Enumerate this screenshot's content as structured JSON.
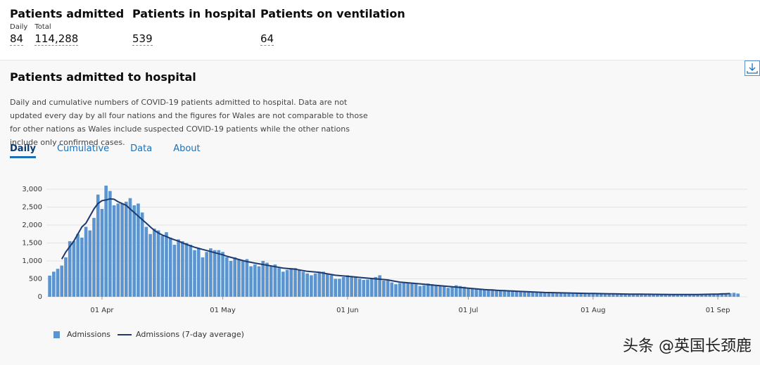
{
  "header": {
    "stats": [
      {
        "title": "Patients admitted",
        "items": [
          {
            "label": "Daily",
            "value": "84"
          },
          {
            "label": "Total",
            "value": "114,288"
          }
        ]
      },
      {
        "title": "Patients in hospital",
        "items": [
          {
            "value": "539"
          }
        ]
      },
      {
        "title": "Patients on ventilation",
        "items": [
          {
            "value": "64"
          }
        ]
      }
    ]
  },
  "card": {
    "description": "Daily and cumulative numbers of COVID-19 patients admitted to hospital. Data are not updated every day by all four nations and the figures for Wales are not comparable to those for other nations as Wales include suspected COVID-19 patients while the other nations include only confirmed cases.",
    "tabs": [
      "Daily",
      "Cumulative",
      "Data",
      "About"
    ]
  },
  "watermark": "头条 @英国长颈鹿",
  "chart_data": {
    "type": "bar",
    "title": "Patients admitted to hospital",
    "categories": [
      null,
      null,
      null,
      null,
      null,
      null,
      null,
      null,
      null,
      null,
      null,
      null,
      null,
      "01 Apr",
      null,
      null,
      null,
      null,
      null,
      null,
      null,
      null,
      null,
      null,
      null,
      null,
      null,
      null,
      null,
      null,
      null,
      null,
      null,
      null,
      null,
      null,
      null,
      null,
      null,
      null,
      null,
      null,
      null,
      "01 May",
      null,
      null,
      null,
      null,
      null,
      null,
      null,
      null,
      null,
      null,
      null,
      null,
      null,
      null,
      null,
      null,
      null,
      null,
      null,
      null,
      null,
      null,
      null,
      null,
      null,
      null,
      null,
      null,
      null,
      null,
      "01 Jun",
      null,
      null,
      null,
      null,
      null,
      null,
      null,
      null,
      null,
      null,
      null,
      null,
      null,
      null,
      null,
      null,
      null,
      null,
      null,
      null,
      null,
      null,
      null,
      null,
      null,
      null,
      null,
      null,
      null,
      "01 Jul",
      null,
      null,
      null,
      null,
      null,
      null,
      null,
      null,
      null,
      null,
      null,
      null,
      null,
      null,
      null,
      null,
      null,
      null,
      null,
      null,
      null,
      null,
      null,
      null,
      null,
      null,
      null,
      null,
      null,
      null,
      "01 Aug",
      null,
      null,
      null,
      null,
      null,
      null,
      null,
      null,
      null,
      null,
      null,
      null,
      null,
      null,
      null,
      null,
      null,
      null,
      null,
      null,
      null,
      null,
      null,
      null,
      null,
      null,
      null,
      null,
      null,
      null,
      "01 Sep",
      null,
      null,
      null,
      null,
      null
    ],
    "series": [
      {
        "name": "Admissions",
        "type": "bar",
        "color": "#5b94cf",
        "values": [
          590,
          700,
          780,
          870,
          1100,
          1550,
          1550,
          1750,
          1650,
          1950,
          1850,
          2200,
          2850,
          2450,
          3100,
          2950,
          2550,
          2600,
          2600,
          2650,
          2750,
          2550,
          2600,
          2350,
          1950,
          1750,
          1900,
          1850,
          1700,
          1800,
          1650,
          1450,
          1600,
          1550,
          1500,
          1450,
          1300,
          1350,
          1100,
          1250,
          1350,
          1300,
          1300,
          1250,
          1100,
          1000,
          1100,
          1050,
          1000,
          1050,
          850,
          900,
          850,
          1000,
          950,
          850,
          900,
          800,
          700,
          750,
          800,
          800,
          750,
          700,
          650,
          600,
          650,
          700,
          700,
          650,
          600,
          500,
          500,
          550,
          600,
          580,
          550,
          500,
          470,
          480,
          520,
          550,
          600,
          450,
          450,
          400,
          350,
          380,
          400,
          400,
          370,
          350,
          300,
          320,
          370,
          350,
          330,
          310,
          300,
          250,
          280,
          320,
          300,
          280,
          250,
          230,
          220,
          200,
          200,
          190,
          180,
          190,
          170,
          160,
          150,
          150,
          160,
          140,
          140,
          130,
          130,
          120,
          120,
          110,
          110,
          120,
          110,
          100,
          100,
          100,
          100,
          110,
          100,
          100,
          90,
          90,
          90,
          80,
          80,
          80,
          80,
          70,
          80,
          70,
          70,
          70,
          80,
          70,
          70,
          60,
          60,
          70,
          60,
          60,
          60,
          70,
          60,
          60,
          60,
          70,
          60,
          60,
          70,
          70,
          60,
          70,
          80,
          100,
          90,
          100,
          110,
          90
        ]
      },
      {
        "name": "Admissions (7-day average)",
        "type": "line",
        "color": "#1d3a70",
        "values": [
          null,
          null,
          null,
          1050,
          1250,
          1400,
          1550,
          1750,
          1950,
          2050,
          2250,
          2450,
          2600,
          2680,
          2700,
          2730,
          2720,
          2650,
          2600,
          2550,
          2450,
          2350,
          2250,
          2150,
          2050,
          1950,
          1850,
          1780,
          1720,
          1680,
          1630,
          1590,
          1550,
          1500,
          1460,
          1420,
          1380,
          1350,
          1320,
          1290,
          1260,
          1230,
          1200,
          1170,
          1130,
          1100,
          1070,
          1040,
          1010,
          980,
          960,
          940,
          920,
          900,
          880,
          860,
          840,
          820,
          800,
          790,
          780,
          770,
          750,
          730,
          710,
          700,
          690,
          680,
          660,
          640,
          620,
          600,
          590,
          580,
          570,
          560,
          550,
          540,
          530,
          520,
          510,
          500,
          490,
          480,
          470,
          450,
          430,
          410,
          400,
          390,
          380,
          370,
          360,
          350,
          340,
          330,
          320,
          310,
          300,
          290,
          280,
          270,
          260,
          250,
          240,
          230,
          220,
          210,
          200,
          195,
          190,
          180,
          175,
          170,
          165,
          160,
          155,
          150,
          145,
          140,
          135,
          130,
          125,
          120,
          118,
          115,
          112,
          110,
          108,
          105,
          102,
          100,
          98,
          96,
          94,
          92,
          90,
          88,
          86,
          84,
          82,
          80,
          78,
          76,
          75,
          74,
          73,
          72,
          71,
          70,
          69,
          68,
          67,
          66,
          65,
          65,
          64,
          64,
          63,
          63,
          64,
          65,
          66,
          68,
          70,
          72,
          75,
          80,
          85,
          90,
          null,
          null
        ]
      }
    ],
    "ylim": [
      0,
      3200
    ],
    "yticks": [
      0,
      500,
      {
        "value": 1000,
        "label": "1,000"
      },
      {
        "value": 1500,
        "label": "1,500"
      },
      {
        "value": 2000,
        "label": "2,000"
      },
      {
        "value": 2500,
        "label": "2,500"
      },
      {
        "value": 3000,
        "label": "3,000"
      }
    ],
    "grid": true,
    "legend": "bottom-left"
  }
}
